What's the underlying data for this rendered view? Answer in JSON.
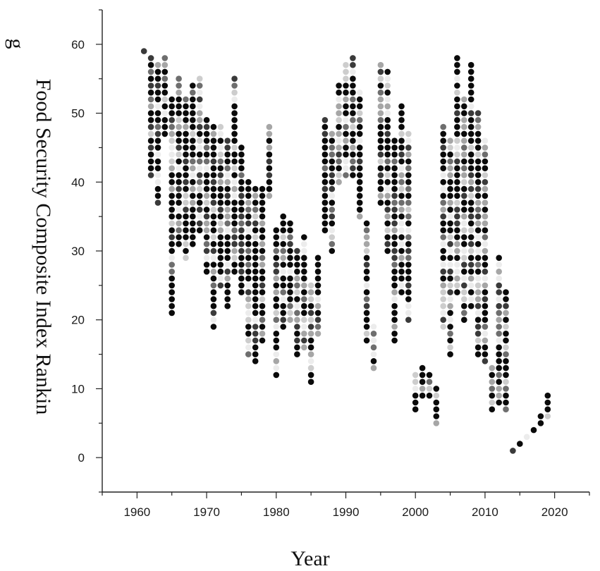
{
  "chart_data": {
    "type": "scatter",
    "title": "",
    "xlabel": "Year",
    "ylabel": "Food Security Composite Index Rankin",
    "ylabel_overflow": "g",
    "xlim": [
      1955,
      2025
    ],
    "ylim": [
      -5,
      65
    ],
    "xticks": [
      1960,
      1970,
      1980,
      1990,
      2000,
      2010,
      2020
    ],
    "yticks": [
      0,
      10,
      20,
      30,
      40,
      50,
      60
    ],
    "grid": false,
    "legend": "none",
    "marker_shades": [
      "#0a0a0a",
      "#3a3a3a",
      "#6e6e6e",
      "#a6a6a6",
      "#cdcdcd",
      "#ececec"
    ],
    "year_ranges": [
      [
        1961,
        59,
        59
      ],
      [
        1962,
        41,
        58
      ],
      [
        1963,
        37,
        57
      ],
      [
        1964,
        47,
        58
      ],
      [
        1965,
        21,
        52
      ],
      [
        1966,
        31,
        55
      ],
      [
        1967,
        29,
        52
      ],
      [
        1968,
        31,
        54
      ],
      [
        1969,
        33,
        55
      ],
      [
        1970,
        27,
        49
      ],
      [
        1971,
        19,
        48
      ],
      [
        1972,
        25,
        48
      ],
      [
        1973,
        22,
        46
      ],
      [
        1974,
        27,
        55
      ],
      [
        1975,
        24,
        45
      ],
      [
        1976,
        15,
        40
      ],
      [
        1977,
        14,
        39
      ],
      [
        1978,
        17,
        39
      ],
      [
        1979,
        38,
        48
      ],
      [
        1980,
        12,
        33
      ],
      [
        1981,
        19,
        35
      ],
      [
        1982,
        20,
        34
      ],
      [
        1983,
        15,
        30
      ],
      [
        1984,
        16,
        32
      ],
      [
        1985,
        11,
        25
      ],
      [
        1986,
        18,
        29
      ],
      [
        1987,
        33,
        49
      ],
      [
        1988,
        30,
        47
      ],
      [
        1989,
        40,
        54
      ],
      [
        1990,
        41,
        57
      ],
      [
        1991,
        41,
        58
      ],
      [
        1992,
        35,
        53
      ],
      [
        1993,
        17,
        34
      ],
      [
        1994,
        13,
        19
      ],
      [
        1995,
        37,
        57
      ],
      [
        1996,
        30,
        56
      ],
      [
        1997,
        17,
        46
      ],
      [
        1998,
        24,
        51
      ],
      [
        1999,
        20,
        47
      ],
      [
        2000,
        7,
        12
      ],
      [
        2001,
        9,
        13
      ],
      [
        2002,
        9,
        12
      ],
      [
        2003,
        5,
        10
      ],
      [
        2004,
        19,
        48
      ],
      [
        2005,
        15,
        46
      ],
      [
        2006,
        24,
        58
      ],
      [
        2007,
        20,
        52
      ],
      [
        2008,
        22,
        57
      ],
      [
        2009,
        15,
        50
      ],
      [
        2010,
        14,
        46
      ],
      [
        2011,
        7,
        13
      ],
      [
        2012,
        8,
        29
      ],
      [
        2013,
        7,
        24
      ],
      [
        2014,
        1,
        1
      ],
      [
        2015,
        2,
        2
      ],
      [
        2016,
        3,
        3
      ],
      [
        2017,
        4,
        4
      ],
      [
        2018,
        5,
        6
      ],
      [
        2019,
        6,
        9
      ]
    ]
  }
}
